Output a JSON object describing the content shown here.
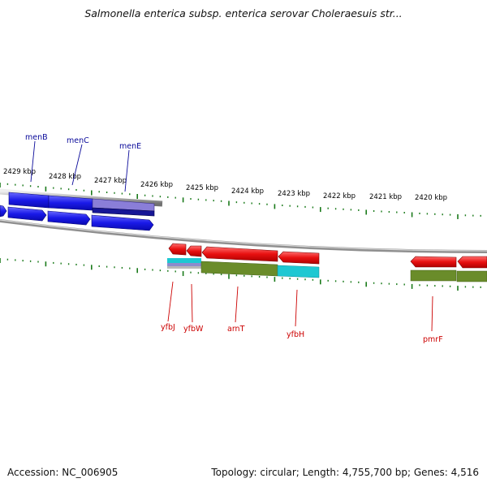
{
  "title": "Salmonella enterica subsp. enterica serovar Choleraesuis str...",
  "accession": "Accession: NC_006905",
  "summary": "Topology: circular; Length: 4,755,700 bp; Genes: 4,516",
  "colors": {
    "forward_gene": "#1616e6",
    "reverse_gene": "#e01010",
    "feature_navy": "#161696",
    "feature_olive": "#6a8c2a",
    "feature_cyan": "#1ec8d2",
    "tick_green": "#1a7a1a",
    "backbone": "#9a9a9a",
    "forward_label": "#0a0a9a",
    "reverse_label": "#cc0000"
  },
  "kbp_labels": [
    "2429 kbp",
    "2428 kbp",
    "2427 kbp",
    "2426 kbp",
    "2425 kbp",
    "2424 kbp",
    "2423 kbp",
    "2422 kbp",
    "2421 kbp",
    "2420 kbp"
  ],
  "forward_genes": [
    "menB",
    "menC",
    "menE"
  ],
  "reverse_genes": [
    "yfbJ",
    "yfbW",
    "arnT",
    "yfbH",
    "pmrF"
  ]
}
